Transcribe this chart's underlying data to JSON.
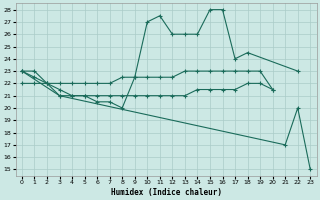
{
  "xlabel": "Humidex (Indice chaleur)",
  "bg_color": "#cce8e4",
  "grid_color": "#aaccc8",
  "line_color": "#1a6b5a",
  "xlim": [
    -0.5,
    23.5
  ],
  "ylim": [
    14.5,
    28.5
  ],
  "yticks": [
    15,
    16,
    17,
    18,
    19,
    20,
    21,
    22,
    23,
    24,
    25,
    26,
    27,
    28
  ],
  "xticks": [
    0,
    1,
    2,
    3,
    4,
    5,
    6,
    7,
    8,
    9,
    10,
    11,
    12,
    13,
    14,
    15,
    16,
    17,
    18,
    19,
    20,
    21,
    22,
    23
  ],
  "line1_x": [
    0,
    1,
    2,
    3,
    4,
    5,
    6,
    7,
    8,
    9,
    10,
    11,
    12,
    13,
    14,
    15,
    16,
    17,
    18,
    22
  ],
  "line1_y": [
    23.0,
    23.0,
    22.0,
    21.0,
    21.0,
    21.0,
    20.5,
    20.5,
    20.0,
    22.5,
    27.0,
    27.5,
    26.0,
    26.0,
    26.0,
    28.0,
    28.0,
    24.0,
    24.5,
    23.0
  ],
  "line2_x": [
    0,
    1,
    2,
    3,
    4,
    5,
    6,
    7,
    8,
    9,
    10,
    11,
    12,
    13,
    14,
    15,
    16,
    17,
    18,
    19,
    20
  ],
  "line2_y": [
    23.0,
    22.5,
    22.0,
    22.0,
    22.0,
    22.0,
    22.0,
    22.0,
    22.5,
    22.5,
    22.5,
    22.5,
    22.5,
    23.0,
    23.0,
    23.0,
    23.0,
    23.0,
    23.0,
    23.0,
    21.5
  ],
  "line3_x": [
    0,
    1,
    2,
    3,
    4,
    5,
    6,
    7,
    8,
    9,
    10,
    11,
    12,
    13,
    14,
    15,
    16,
    17,
    18,
    19,
    20
  ],
  "line3_y": [
    22.0,
    22.0,
    22.0,
    21.5,
    21.0,
    21.0,
    21.0,
    21.0,
    21.0,
    21.0,
    21.0,
    21.0,
    21.0,
    21.0,
    21.5,
    21.5,
    21.5,
    21.5,
    22.0,
    22.0,
    21.5
  ],
  "line4_x": [
    0,
    3,
    21,
    22,
    23
  ],
  "line4_y": [
    23.0,
    21.0,
    17.0,
    20.0,
    15.0
  ]
}
